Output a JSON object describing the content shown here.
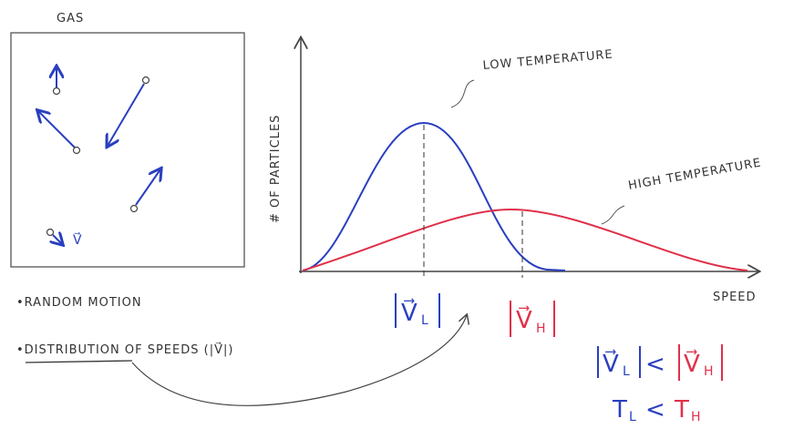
{
  "gas_panel": {
    "title": "GAS",
    "velocity_symbol": "V⃗"
  },
  "graph": {
    "y_axis_label": "# OF PARTICLES",
    "x_axis_label": "SPEED",
    "low_curve_label": "LOW TEMPERATURE",
    "high_curve_label": "HIGH TEMPERATURE",
    "low_peak": {
      "symbol": "V⃗",
      "subscript": "L"
    },
    "high_peak": {
      "symbol": "V⃗",
      "subscript": "H"
    }
  },
  "notes": {
    "bullet_1": "•RANDOM MOTION",
    "bullet_2": "•DISTRIBUTION OF SPEEDS (|V⃗|)"
  },
  "comparisons": {
    "speed": {
      "left": {
        "symbol": "V⃗",
        "subscript": "L"
      },
      "operator": "<",
      "right": {
        "symbol": "V⃗",
        "subscript": "H"
      }
    },
    "temperature": {
      "left": {
        "symbol": "T",
        "subscript": "L"
      },
      "operator": "<",
      "right": {
        "symbol": "T",
        "subscript": "H"
      }
    }
  }
}
